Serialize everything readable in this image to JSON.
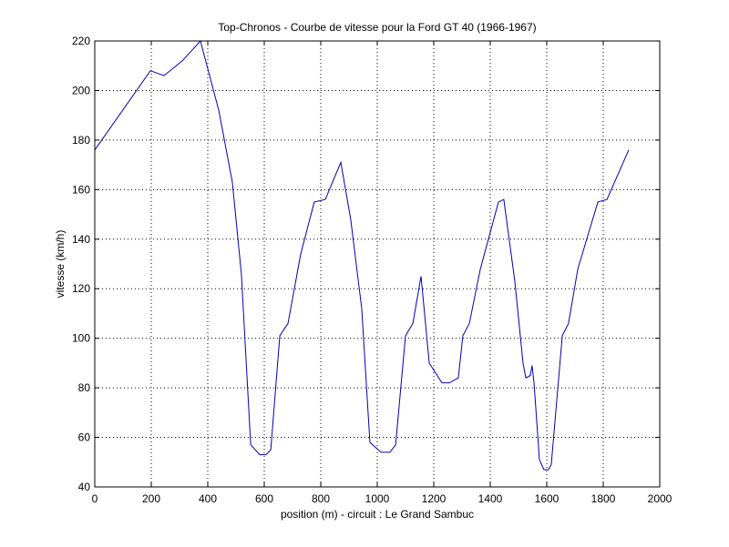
{
  "chart_data": {
    "type": "line",
    "title": "Top-Chronos - Courbe de vitesse pour la Ford GT 40 (1966-1967)",
    "x_label": "position (m) - circuit : Le Grand Sambuc",
    "y_label": "vitesse (km/h)",
    "x": [
      0,
      197,
      245,
      310,
      374,
      439,
      487,
      519,
      552,
      584,
      606,
      623,
      655,
      684,
      729,
      777,
      816,
      871,
      906,
      945,
      974,
      1013,
      1045,
      1065,
      1100,
      1126,
      1155,
      1184,
      1229,
      1255,
      1287,
      1303,
      1326,
      1365,
      1429,
      1448,
      1487,
      1516,
      1526,
      1542,
      1548,
      1555,
      1574,
      1590,
      1606,
      1616,
      1655,
      1677,
      1710,
      1781,
      1813,
      1890
    ],
    "series": [
      {
        "color": "#0000b4",
        "values": [
          176,
          208,
          206,
          212,
          220,
          192,
          163,
          126,
          57,
          53,
          53,
          55,
          101,
          106,
          134,
          155,
          156,
          171,
          148,
          112,
          58,
          54,
          54,
          57,
          101,
          106,
          125,
          90,
          82,
          82,
          84,
          101,
          106,
          128,
          155,
          156,
          123,
          90,
          84,
          85,
          89,
          82,
          51,
          47,
          47,
          49,
          101,
          106,
          128,
          155,
          156,
          176
        ]
      }
    ],
    "xlim": [
      0,
      2000
    ],
    "ylim": [
      40,
      220
    ],
    "xticks": [
      0,
      200,
      400,
      600,
      800,
      1000,
      1200,
      1400,
      1600,
      1800,
      2000
    ],
    "yticks": [
      40,
      60,
      80,
      100,
      120,
      140,
      160,
      180,
      200,
      220
    ],
    "grid": true
  }
}
